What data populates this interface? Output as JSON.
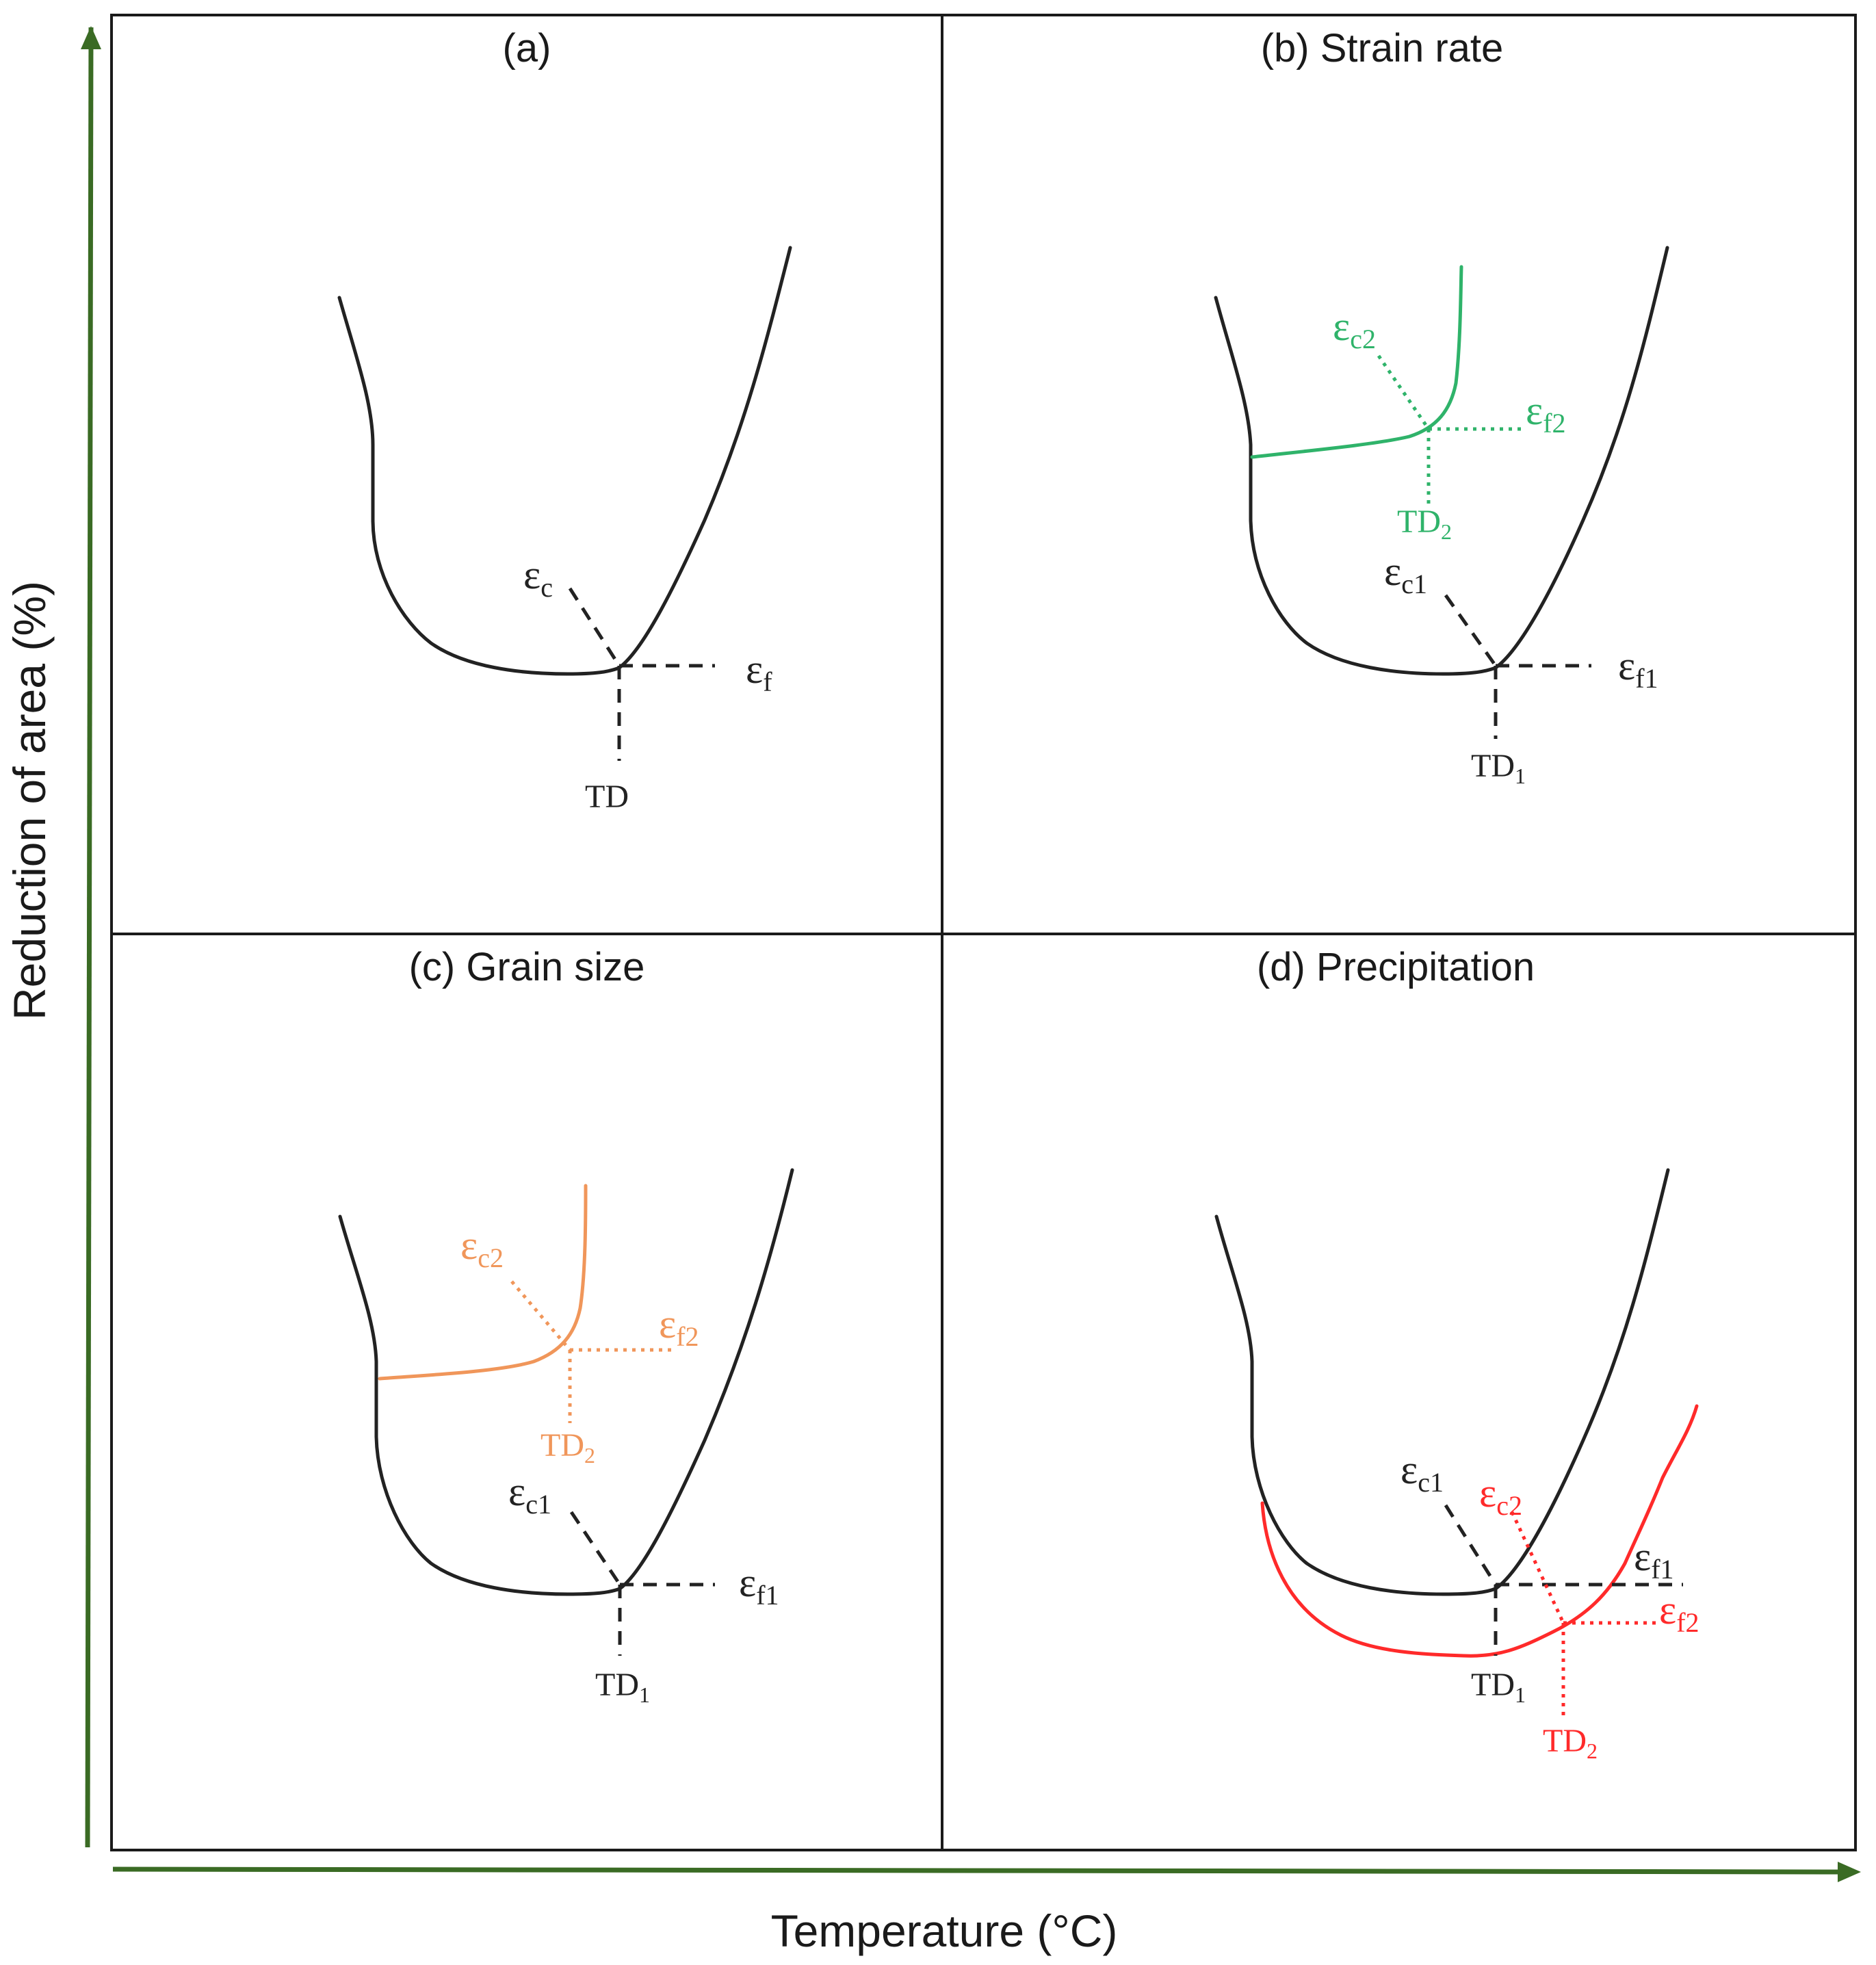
{
  "axes": {
    "x_title": "Temperature (°C)",
    "y_title": "Reduction of area (%)",
    "arrow_color": "#3a6b24"
  },
  "colors": {
    "base": "#222222",
    "strain_rate": "#2fb36a",
    "grain_size": "#f0965a",
    "precipitation": "#ff2a2a",
    "frame": "#1a1a1a"
  },
  "panels": {
    "a": {
      "title": "(a)",
      "eps_c": {
        "base": "ε",
        "sub": "c"
      },
      "eps_f": {
        "base": "ε",
        "sub": "f"
      },
      "td": {
        "base": "TD",
        "sub": ""
      }
    },
    "b": {
      "title": "(b) Strain rate",
      "eps_c2": {
        "base": "ε",
        "sub": "c2"
      },
      "eps_f2": {
        "base": "ε",
        "sub": "f2"
      },
      "td2": {
        "base": "TD",
        "sub": "2"
      },
      "eps_c1": {
        "base": "ε",
        "sub": "c1"
      },
      "eps_f1": {
        "base": "ε",
        "sub": "f1"
      },
      "td1": {
        "base": "TD",
        "sub": "1"
      }
    },
    "c": {
      "title": "(c) Grain size",
      "eps_c2": {
        "base": "ε",
        "sub": "c2"
      },
      "eps_f2": {
        "base": "ε",
        "sub": "f2"
      },
      "td2": {
        "base": "TD",
        "sub": "2"
      },
      "eps_c1": {
        "base": "ε",
        "sub": "c1"
      },
      "eps_f1": {
        "base": "ε",
        "sub": "f1"
      },
      "td1": {
        "base": "TD",
        "sub": "1"
      }
    },
    "d": {
      "title": "(d) Precipitation",
      "eps_c1": {
        "base": "ε",
        "sub": "c1"
      },
      "eps_f1": {
        "base": "ε",
        "sub": "f1"
      },
      "td1": {
        "base": "TD",
        "sub": "1"
      },
      "eps_c2": {
        "base": "ε",
        "sub": "c2"
      },
      "eps_f2": {
        "base": "ε",
        "sub": "f2"
      },
      "td2": {
        "base": "TD",
        "sub": "2"
      }
    }
  }
}
